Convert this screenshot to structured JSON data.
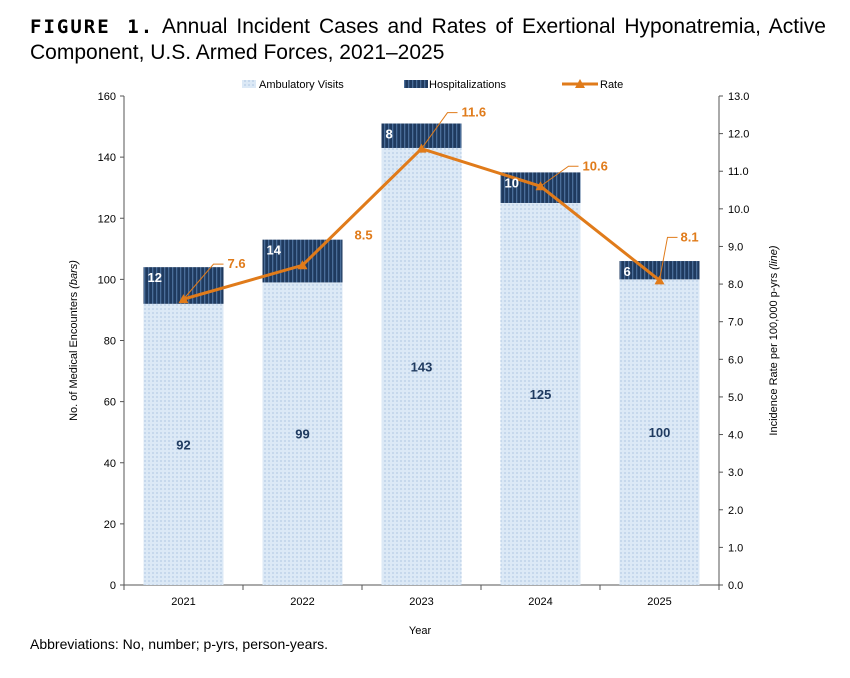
{
  "figure": {
    "label": "FIGURE 1.",
    "title": "Annual Incident Cases and Rates of Exertional Hyponatremia, Active Component, U.S. Armed Forces, 2021–2025"
  },
  "footnote": "Abbreviations: No, number; p-yrs, person-years.",
  "colors": {
    "ambulatory": "#dce9f6",
    "ambulatory_dot": "#8fb0d6",
    "hospital": "#1f3a5f",
    "hospital_stripe": "#4a6d99",
    "rate": "#e07b1a"
  },
  "chart_data": {
    "type": "bar",
    "stacked": true,
    "categories": [
      "2021",
      "2022",
      "2023",
      "2024",
      "2025"
    ],
    "series": [
      {
        "name": "Ambulatory Visits",
        "values": [
          92,
          99,
          143,
          125,
          100
        ]
      },
      {
        "name": "Hospitalizations",
        "values": [
          12,
          14,
          8,
          10,
          6
        ]
      }
    ],
    "line_series": {
      "name": "Rate",
      "values": [
        7.6,
        8.5,
        11.6,
        10.6,
        8.1
      ],
      "value_labels": [
        "7.6",
        "8.5",
        "11.6",
        "10.6",
        "8.1"
      ]
    },
    "xlabel": "Year",
    "ylabel": "No. of Medical Encounters",
    "ylabel_suffix": "(bars)",
    "y2label": "Incidence Rate per 100,000 p-yrs",
    "y2label_suffix": "(line)",
    "ylim": [
      0,
      160
    ],
    "yticks": [
      "0",
      "20",
      "40",
      "60",
      "80",
      "100",
      "120",
      "140",
      "160"
    ],
    "y2lim": [
      0,
      13
    ],
    "y2ticks": [
      "0.0",
      "1.0",
      "2.0",
      "3.0",
      "4.0",
      "5.0",
      "6.0",
      "7.0",
      "8.0",
      "9.0",
      "10.0",
      "11.0",
      "12.0",
      "13.0"
    ],
    "legend_position": "top-center",
    "grid": false
  }
}
